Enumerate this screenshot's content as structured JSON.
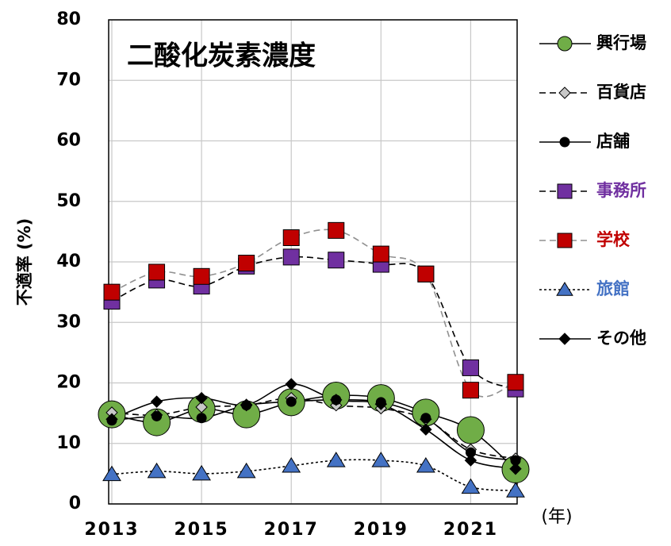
{
  "chart_data": {
    "type": "line",
    "title": "二酸化炭素濃度",
    "y_label": "不適率 (%)",
    "x_label": "(年)",
    "x": [
      2013,
      2014,
      2015,
      2016,
      2017,
      2018,
      2019,
      2020,
      2021,
      2022
    ],
    "xlim": [
      2013,
      2022
    ],
    "xticks": [
      2013,
      2015,
      2017,
      2019,
      2021
    ],
    "ylim": [
      0,
      80
    ],
    "yticks": [
      0,
      10,
      20,
      30,
      40,
      50,
      60,
      70,
      80
    ],
    "grid": true,
    "smooth": true,
    "legend": "right",
    "series": [
      {
        "name": "興行場",
        "color": "#70ad47",
        "line_color": "#000000",
        "marker": "circle",
        "marker_size": 17,
        "dash": "solid",
        "label_color": "#000000",
        "values": [
          14.8,
          13.5,
          15.7,
          14.8,
          16.8,
          17.9,
          17.5,
          15.1,
          12.2,
          5.7
        ]
      },
      {
        "name": "百貨店",
        "color": "#c8c8c8",
        "line_color": "#000000",
        "marker": "diamond",
        "marker_size": 7,
        "dash": "dashed",
        "label_color": "#000000",
        "values": [
          15.1,
          14.7,
          16.0,
          16.3,
          17.5,
          16.3,
          15.8,
          14.0,
          9.0,
          7.5
        ]
      },
      {
        "name": "店舗",
        "color": "#000000",
        "line_color": "#000000",
        "marker": "circle",
        "marker_size": 6,
        "dash": "solid",
        "label_color": "#000000",
        "values": [
          13.8,
          14.5,
          14.2,
          16.3,
          16.9,
          17.2,
          16.8,
          14.2,
          8.5,
          7.2
        ]
      },
      {
        "name": "事務所",
        "color": "#7030a0",
        "line_color": "#000000",
        "marker": "square",
        "marker_size": 10,
        "dash": "dashed",
        "label_color": "#7030a0",
        "values": [
          33.5,
          37.0,
          36.0,
          39.3,
          40.8,
          40.3,
          39.6,
          38.0,
          22.5,
          19.0
        ]
      },
      {
        "name": "学校",
        "color": "#c00000",
        "line_color": "#909090",
        "marker": "square",
        "marker_size": 10,
        "dash": "dashed",
        "label_color": "#c00000",
        "values": [
          35.0,
          38.3,
          37.6,
          39.8,
          44.0,
          45.2,
          41.3,
          38.0,
          18.8,
          20.1
        ]
      },
      {
        "name": "旅館",
        "color": "#4472c4",
        "line_color": "#000000",
        "marker": "triangle",
        "marker_size": 10,
        "dash": "dotted",
        "label_color": "#4472c4",
        "values": [
          4.9,
          5.4,
          5.0,
          5.4,
          6.3,
          7.2,
          7.2,
          6.3,
          2.8,
          2.2
        ]
      },
      {
        "name": "その他",
        "color": "#000000",
        "line_color": "#000000",
        "marker": "diamond",
        "marker_size": 7,
        "dash": "solid",
        "label_color": "#000000",
        "values": [
          14.0,
          16.9,
          17.5,
          16.4,
          19.8,
          17.2,
          16.5,
          12.3,
          7.2,
          5.8
        ]
      }
    ]
  }
}
